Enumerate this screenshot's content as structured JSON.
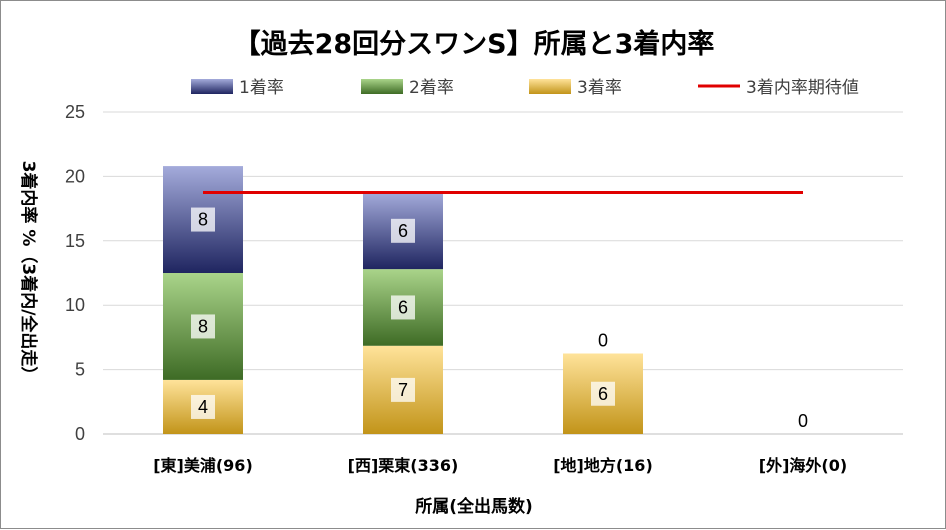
{
  "chart_data": {
    "type": "bar",
    "stacked": true,
    "title": "【過去28回分スワンS】所属と3着内率",
    "xlabel": "所属(全出馬数)",
    "ylabel": "3着内率 %（3着内/全出走）",
    "ylim": [
      0,
      25
    ],
    "yticks": [
      "0",
      "5",
      "10",
      "15",
      "20",
      "25"
    ],
    "grid": true,
    "legend_position": "top",
    "categories": [
      "[東]美浦(96)",
      "[西]栗東(336)",
      "[地]地方(16)",
      "[外]海外(0)"
    ],
    "series": [
      {
        "name": "1着率",
        "values": [
          8.3,
          5.95,
          0,
          0
        ],
        "labels": [
          "8",
          "6",
          "0",
          "0"
        ],
        "color_top": "#a4abdb",
        "color_bottom": "#1f2560"
      },
      {
        "name": "2着率",
        "values": [
          8.3,
          5.95,
          0,
          0
        ],
        "labels": [
          "8",
          "6",
          "",
          ""
        ],
        "color_top": "#aad48a",
        "color_bottom": "#3e6b25"
      },
      {
        "name": "3着率",
        "values": [
          4.2,
          6.85,
          6.25,
          0
        ],
        "labels": [
          "4",
          "7",
          "6",
          ""
        ],
        "color_top": "#ffe39a",
        "color_bottom": "#c29419"
      }
    ],
    "reference_line": {
      "name": "3着内率期待値",
      "value": 18.75,
      "color": "#e00000"
    }
  }
}
